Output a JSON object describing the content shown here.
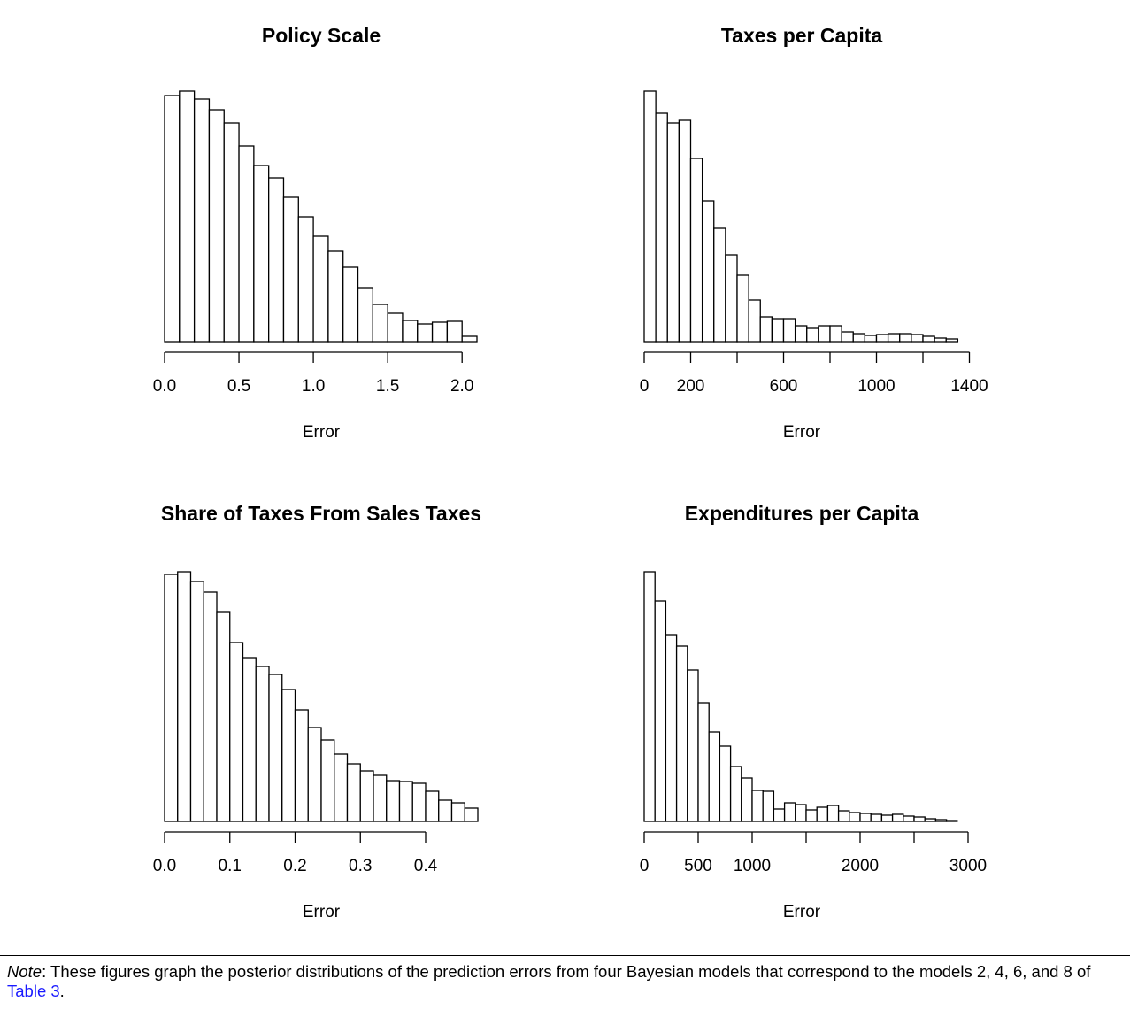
{
  "chart_data": [
    {
      "type": "histogram",
      "title": "Policy Scale",
      "xlabel": "Error",
      "bins": [
        0,
        0.1,
        0.2,
        0.3,
        0.4,
        0.5,
        0.6,
        0.7,
        0.8,
        0.9,
        1.0,
        1.1,
        1.2,
        1.3,
        1.4,
        1.5,
        1.6,
        1.7,
        1.8,
        1.9,
        2.0,
        2.1
      ],
      "counts": [
        278,
        283,
        274,
        262,
        247,
        221,
        199,
        185,
        163,
        141,
        119,
        102,
        84,
        61,
        42,
        32,
        24,
        20,
        22,
        23,
        6
      ],
      "xlim": [
        0,
        2.1
      ],
      "ylim": [
        0,
        290
      ],
      "xticks": [
        {
          "value": 0,
          "label": "0.0"
        },
        0.5,
        {
          "value": 1,
          "label": "1.0"
        },
        1.5,
        {
          "value": 2,
          "label": "2.0"
        }
      ]
    },
    {
      "type": "histogram",
      "title": "Taxes per Capita",
      "xlabel": "Error",
      "bins": [
        0,
        50,
        100,
        150,
        200,
        250,
        300,
        350,
        400,
        450,
        500,
        550,
        600,
        650,
        700,
        750,
        800,
        850,
        900,
        950,
        1000,
        1050,
        1100,
        1150,
        1200,
        1250,
        1300,
        1350
      ],
      "counts": [
        283,
        258,
        247,
        250,
        207,
        159,
        128,
        98,
        75,
        47,
        28,
        26,
        26,
        18,
        15,
        18,
        18,
        11,
        9,
        7,
        8,
        9,
        9,
        8,
        6,
        4,
        3
      ],
      "xlim": [
        0,
        1400
      ],
      "ylim": [
        0,
        290
      ],
      "xticks": [
        0,
        200,
        {
          "value": 400,
          "label": null
        },
        600,
        {
          "value": 800,
          "label": null
        },
        1000,
        {
          "value": 1200,
          "label": null
        },
        1400
      ]
    },
    {
      "type": "histogram",
      "title": "Share of Taxes From Sales Taxes",
      "xlabel": "Error",
      "bins": [
        0,
        0.02,
        0.04,
        0.06,
        0.08,
        0.1,
        0.12,
        0.14,
        0.16,
        0.18,
        0.2,
        0.22,
        0.24,
        0.26,
        0.28,
        0.3,
        0.32,
        0.34,
        0.36,
        0.38,
        0.4,
        0.42,
        0.44,
        0.46,
        0.48
      ],
      "counts": [
        279,
        282,
        271,
        259,
        237,
        202,
        185,
        175,
        166,
        149,
        126,
        106,
        92,
        76,
        65,
        57,
        52,
        46,
        45,
        43,
        34,
        24,
        21,
        15
      ],
      "xlim": [
        0,
        0.48
      ],
      "ylim": [
        0,
        290
      ],
      "xticks": [
        {
          "value": 0,
          "label": "0.0"
        },
        0.1,
        0.2,
        0.3,
        0.4
      ]
    },
    {
      "type": "histogram",
      "title": "Expenditures per Capita",
      "xlabel": "Error",
      "bins": [
        0,
        100,
        200,
        300,
        400,
        500,
        600,
        700,
        800,
        900,
        1000,
        1100,
        1200,
        1300,
        1400,
        1500,
        1600,
        1700,
        1800,
        1900,
        2000,
        2100,
        2200,
        2300,
        2400,
        2500,
        2600,
        2700,
        2800,
        2900
      ],
      "counts": [
        282,
        249,
        211,
        198,
        171,
        134,
        101,
        85,
        62,
        49,
        35,
        34,
        14,
        21,
        19,
        13,
        16,
        18,
        12,
        10,
        9,
        8,
        7,
        8,
        6,
        5,
        3,
        2,
        1
      ],
      "xlim": [
        0,
        3000
      ],
      "ylim": [
        0,
        290
      ],
      "xticks": [
        0,
        500,
        1000,
        {
          "value": 1500,
          "label": null
        },
        2000,
        {
          "value": 2500,
          "label": null
        },
        3000
      ]
    }
  ],
  "note": {
    "label": "Note",
    "text": ": These figures graph the posterior distributions of the prediction errors from four Bayesian models that correspond to the models 2, 4, 6, and 8 of ",
    "link": "Table 3",
    "end": "."
  }
}
